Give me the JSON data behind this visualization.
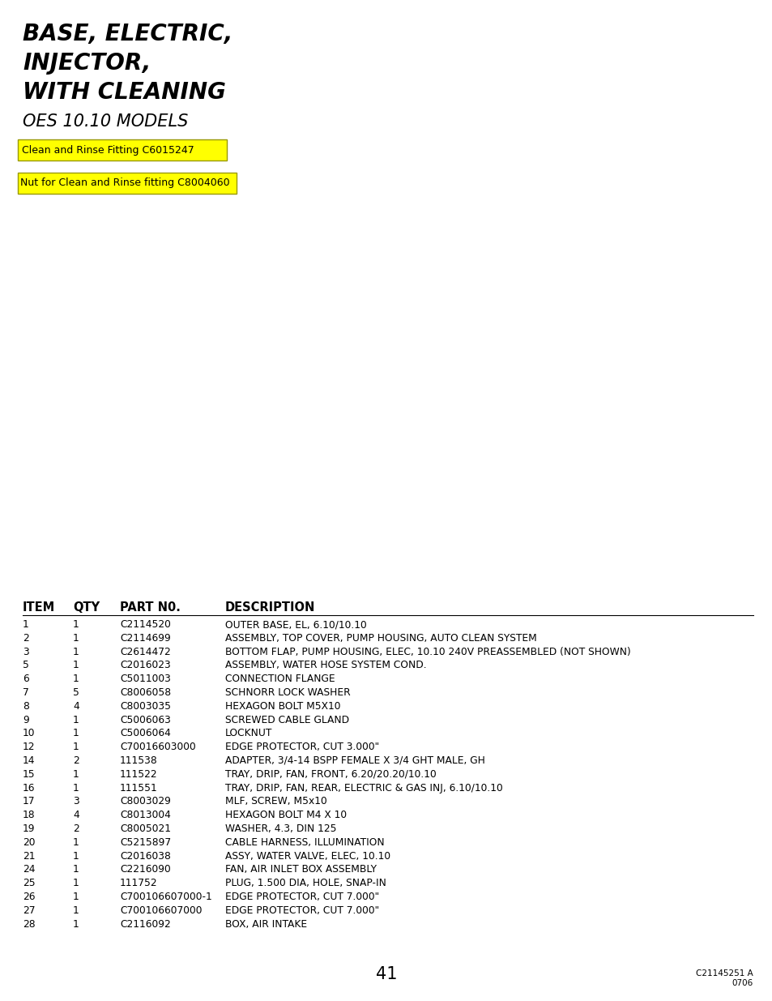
{
  "title_line1": "BASE, ELECTRIC,",
  "title_line2": "INJECTOR,",
  "title_line3": "WITH CLEANING",
  "subtitle": "OES 10.10 MODELS",
  "highlight_box1": "Clean and Rinse Fitting C6015247",
  "highlight_box2": "Nut for Clean and Rinse fitting C8004060",
  "highlight_color": "#FFFF00",
  "highlight_border": "#999900",
  "table_headers": [
    "ITEM",
    "QTY",
    "PART N0.",
    "DESCRIPTION"
  ],
  "table_rows": [
    [
      "1",
      "1",
      "C2114520",
      "OUTER BASE, EL, 6.10/10.10"
    ],
    [
      "2",
      "1",
      "C2114699",
      "ASSEMBLY, TOP COVER, PUMP HOUSING, AUTO CLEAN SYSTEM"
    ],
    [
      "3",
      "1",
      "C2614472",
      "BOTTOM FLAP, PUMP HOUSING, ELEC, 10.10 240V PREASSEMBLED (NOT SHOWN)"
    ],
    [
      "5",
      "1",
      "C2016023",
      "ASSEMBLY, WATER HOSE SYSTEM COND."
    ],
    [
      "6",
      "1",
      "C5011003",
      "CONNECTION FLANGE"
    ],
    [
      "7",
      "5",
      "C8006058",
      "SCHNORR LOCK WASHER"
    ],
    [
      "8",
      "4",
      "C8003035",
      "HEXAGON BOLT M5X10"
    ],
    [
      "9",
      "1",
      "C5006063",
      "SCREWED CABLE GLAND"
    ],
    [
      "10",
      "1",
      "C5006064",
      "LOCKNUT"
    ],
    [
      "12",
      "1",
      "C70016603000",
      "EDGE PROTECTOR, CUT 3.000\""
    ],
    [
      "14",
      "2",
      "111538",
      "ADAPTER, 3/4-14 BSPP FEMALE X 3/4 GHT MALE, GH"
    ],
    [
      "15",
      "1",
      "111522",
      "TRAY, DRIP, FAN, FRONT, 6.20/20.20/10.10"
    ],
    [
      "16",
      "1",
      "111551",
      "TRAY, DRIP, FAN, REAR, ELECTRIC & GAS INJ, 6.10/10.10"
    ],
    [
      "17",
      "3",
      "C8003029",
      "MLF, SCREW, M5x10"
    ],
    [
      "18",
      "4",
      "C8013004",
      "HEXAGON BOLT M4 X 10"
    ],
    [
      "19",
      "2",
      "C8005021",
      "WASHER, 4.3, DIN 125"
    ],
    [
      "20",
      "1",
      "C5215897",
      "CABLE HARNESS, ILLUMINATION"
    ],
    [
      "21",
      "1",
      "C2016038",
      "ASSY, WATER VALVE, ELEC, 10.10"
    ],
    [
      "24",
      "1",
      "C2216090",
      "FAN, AIR INLET BOX ASSEMBLY"
    ],
    [
      "25",
      "1",
      "111752",
      "PLUG, 1.500 DIA, HOLE, SNAP-IN"
    ],
    [
      "26",
      "1",
      "C700106607000-1",
      "EDGE PROTECTOR, CUT 7.000\""
    ],
    [
      "27",
      "1",
      "C700106607000",
      "EDGE PROTECTOR, CUT 7.000\""
    ],
    [
      "28",
      "1",
      "C2116092",
      "BOX, AIR INTAKE"
    ]
  ],
  "page_number": "41",
  "doc_ref_line1": "C21145251 A",
  "doc_ref_line2": "0706",
  "bg_color": "#FFFFFF",
  "text_color": "#000000"
}
